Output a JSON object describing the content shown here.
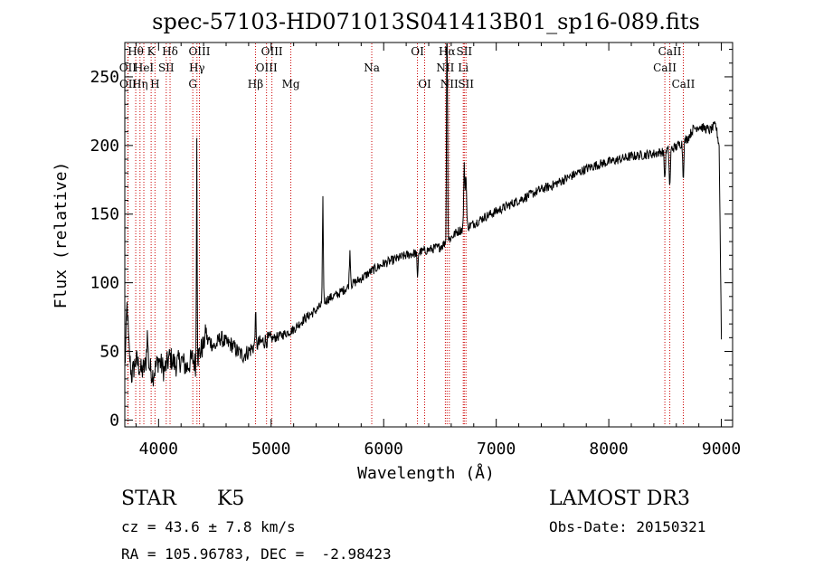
{
  "chart_data": {
    "type": "line",
    "title": "spec-57103-HD071013S041413B01_sp16-089.fits",
    "xlabel": "Wavelength (Å)",
    "ylabel": "Flux (relative)",
    "xlim": [
      3700,
      9100
    ],
    "ylim": [
      -5,
      275
    ],
    "x_ticks": [
      4000,
      5000,
      6000,
      7000,
      8000,
      9000
    ],
    "y_ticks": [
      0,
      50,
      100,
      150,
      200,
      250
    ],
    "line_color": "#000000",
    "marker_color": "#cc0000",
    "series": [
      {
        "name": "flux",
        "anchors": [
          [
            3700,
            38
          ],
          [
            3720,
            58
          ],
          [
            3740,
            48
          ],
          [
            3760,
            32
          ],
          [
            3800,
            44
          ],
          [
            3850,
            35
          ],
          [
            3900,
            42
          ],
          [
            3950,
            33
          ],
          [
            4000,
            44
          ],
          [
            4050,
            36
          ],
          [
            4100,
            46
          ],
          [
            4150,
            40
          ],
          [
            4200,
            44
          ],
          [
            4250,
            38
          ],
          [
            4300,
            45
          ],
          [
            4330,
            40
          ],
          [
            4360,
            48
          ],
          [
            4400,
            55
          ],
          [
            4450,
            58
          ],
          [
            4500,
            53
          ],
          [
            4550,
            60
          ],
          [
            4600,
            56
          ],
          [
            4650,
            55
          ],
          [
            4700,
            50
          ],
          [
            4750,
            47
          ],
          [
            4800,
            50
          ],
          [
            4850,
            54
          ],
          [
            4900,
            56
          ],
          [
            4950,
            58
          ],
          [
            5000,
            59
          ],
          [
            5100,
            62
          ],
          [
            5200,
            66
          ],
          [
            5300,
            74
          ],
          [
            5400,
            80
          ],
          [
            5450,
            84
          ],
          [
            5500,
            88
          ],
          [
            5600,
            92
          ],
          [
            5700,
            98
          ],
          [
            5800,
            103
          ],
          [
            5900,
            109
          ],
          [
            6000,
            114
          ],
          [
            6100,
            117
          ],
          [
            6200,
            120
          ],
          [
            6300,
            122
          ],
          [
            6400,
            124
          ],
          [
            6500,
            126
          ],
          [
            6560,
            130
          ],
          [
            6600,
            133
          ],
          [
            6650,
            137
          ],
          [
            6700,
            139
          ],
          [
            6800,
            143
          ],
          [
            6900,
            148
          ],
          [
            7000,
            152
          ],
          [
            7100,
            156
          ],
          [
            7200,
            160
          ],
          [
            7300,
            164
          ],
          [
            7400,
            168
          ],
          [
            7500,
            171
          ],
          [
            7600,
            175
          ],
          [
            7700,
            179
          ],
          [
            7800,
            183
          ],
          [
            7900,
            186
          ],
          [
            8000,
            188
          ],
          [
            8100,
            190
          ],
          [
            8200,
            192
          ],
          [
            8300,
            193
          ],
          [
            8400,
            194
          ],
          [
            8500,
            196
          ],
          [
            8600,
            199
          ],
          [
            8700,
            205
          ],
          [
            8750,
            212
          ],
          [
            8800,
            214
          ],
          [
            8900,
            211
          ],
          [
            8950,
            215
          ],
          [
            8980,
            200
          ],
          [
            9000,
            60
          ]
        ],
        "features": [
          [
            6563,
            210,
            4
          ],
          [
            6716,
            45,
            5
          ],
          [
            6731,
            40,
            5
          ],
          [
            4340,
            170,
            3
          ],
          [
            4861,
            30,
            3
          ],
          [
            5460,
            75,
            4
          ],
          [
            5700,
            25,
            5
          ],
          [
            8498,
            -20,
            5
          ],
          [
            8542,
            -28,
            5
          ],
          [
            8662,
            -25,
            5
          ],
          [
            6300,
            -20,
            4
          ],
          [
            3720,
            25,
            8
          ],
          [
            3900,
            20,
            6
          ],
          [
            4420,
            10,
            6
          ]
        ]
      }
    ],
    "line_markers": [
      {
        "wavelength": 3727,
        "label": "OII",
        "row": 1
      },
      {
        "wavelength": 3729,
        "label": "OII",
        "row": 2
      },
      {
        "wavelength": 3797,
        "label": "Hθ",
        "row": 0
      },
      {
        "wavelength": 3835,
        "label": "Hη",
        "row": 2
      },
      {
        "wavelength": 3869,
        "label": "HeI",
        "row": 1
      },
      {
        "wavelength": 3934,
        "label": "K",
        "row": 0
      },
      {
        "wavelength": 3968,
        "label": "H",
        "row": 2
      },
      {
        "wavelength": 4068,
        "label": "SII",
        "row": 1
      },
      {
        "wavelength": 4102,
        "label": "Hδ",
        "row": 0
      },
      {
        "wavelength": 4304,
        "label": "G",
        "row": 2
      },
      {
        "wavelength": 4341,
        "label": "Hγ",
        "row": 1
      },
      {
        "wavelength": 4363,
        "label": "OIII",
        "row": 0
      },
      {
        "wavelength": 4861,
        "label": "Hβ",
        "row": 2
      },
      {
        "wavelength": 4959,
        "label": "OIII",
        "row": 1
      },
      {
        "wavelength": 5007,
        "label": "OIII",
        "row": 0
      },
      {
        "wavelength": 5175,
        "label": "Mg",
        "row": 2
      },
      {
        "wavelength": 5894,
        "label": "Na",
        "row": 1
      },
      {
        "wavelength": 6300,
        "label": "OI",
        "row": 0
      },
      {
        "wavelength": 6364,
        "label": "OI",
        "row": 2
      },
      {
        "wavelength": 6548,
        "label": "NII",
        "row": 1
      },
      {
        "wavelength": 6563,
        "label": "Hα",
        "row": 0
      },
      {
        "wavelength": 6583,
        "label": "NII",
        "row": 2
      },
      {
        "wavelength": 6707,
        "label": "Li",
        "row": 1
      },
      {
        "wavelength": 6716,
        "label": "SII",
        "row": 0
      },
      {
        "wavelength": 6731,
        "label": "SII",
        "row": 2
      },
      {
        "wavelength": 8498,
        "label": "CaII",
        "row": 1
      },
      {
        "wavelength": 8542,
        "label": "CaII",
        "row": 0
      },
      {
        "wavelength": 8662,
        "label": "CaII",
        "row": 2
      }
    ]
  },
  "info": {
    "object_class": "STAR",
    "subclass": "K5",
    "survey": "LAMOST DR3",
    "redshift_line": "cz = 43.6 ± 7.8 km/s",
    "obs_date": "Obs-Date: 20150321",
    "coords": "RA = 105.96783, DEC =  -2.98423"
  }
}
